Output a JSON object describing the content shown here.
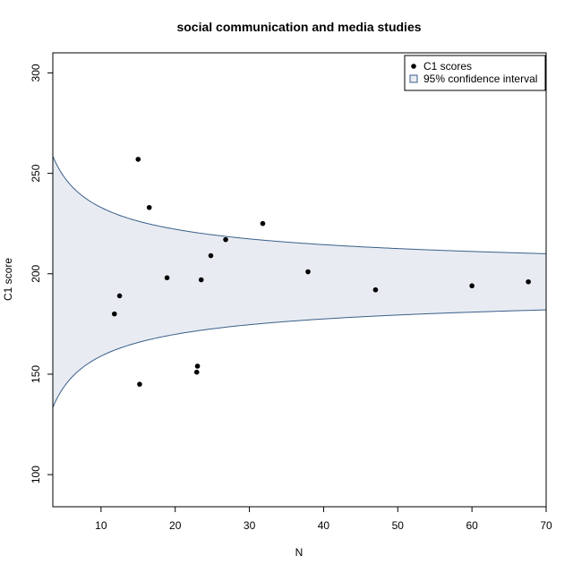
{
  "chart_data": {
    "type": "scatter",
    "title": "social communication and media studies",
    "xlabel": "N",
    "ylabel": "C1 score",
    "xlim": [
      3.5,
      70
    ],
    "ylim": [
      84,
      310
    ],
    "xticks": [
      10,
      20,
      30,
      40,
      50,
      60,
      70
    ],
    "yticks": [
      100,
      150,
      200,
      250,
      300
    ],
    "grid": false,
    "legend": {
      "placement": "top-right",
      "entries": [
        "C1 scores",
        "95% confidence interval"
      ]
    },
    "colors": {
      "points": "#000000",
      "band_fill": "#e8ecf2",
      "band_line": "#3a5f8a",
      "axis": "#000000"
    },
    "confidence_interval": {
      "center": 196,
      "level": "95%"
    },
    "series": [
      {
        "name": "C1 scores",
        "x": [
          11.8,
          12.5,
          15.0,
          15.2,
          16.5,
          18.9,
          22.9,
          23.0,
          23.5,
          24.8,
          26.8,
          31.8,
          37.9,
          47.0,
          60.0,
          67.6
        ],
        "y": [
          180,
          189,
          257,
          145,
          233,
          198,
          151,
          154,
          197,
          209,
          217,
          225,
          201,
          192,
          194,
          196
        ]
      }
    ]
  }
}
